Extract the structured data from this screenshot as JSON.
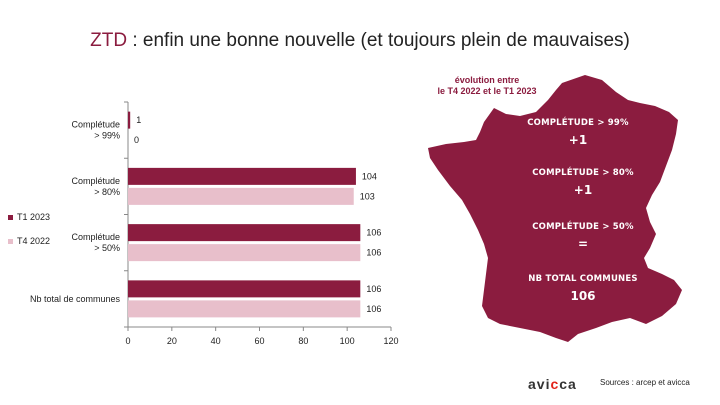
{
  "title": {
    "accent": "ZTD",
    "rest": " : enfin une bonne nouvelle (et toujours plein de mauvaises)"
  },
  "chart_data": {
    "type": "bar",
    "orientation": "horizontal",
    "categories": [
      "Complétude\n> 99%",
      "Complétude\n> 80%",
      "Complétude\n> 50%",
      "Nb total de communes"
    ],
    "series": [
      {
        "name": "T1 2023",
        "values": [
          1,
          104,
          106,
          106
        ],
        "color": "#8b1c3f"
      },
      {
        "name": "T4 2022",
        "values": [
          0,
          103,
          106,
          106
        ],
        "color": "#e8bfcb"
      }
    ],
    "xlim": [
      0,
      120
    ],
    "xticks": [
      0,
      20,
      40,
      60,
      80,
      100,
      120
    ],
    "legend_position": "left"
  },
  "map": {
    "heading": [
      "évolution entre",
      "le T4 2022 et le T1 2023"
    ],
    "color": "#8b1c3f",
    "stats": [
      {
        "label": "COMPLÉTUDE > 99%",
        "value": "+1"
      },
      {
        "label": "COMPLÉTUDE > 80%",
        "value": "+1"
      },
      {
        "label": "COMPLÉTUDE > 50%",
        "value": "="
      },
      {
        "label": "NB TOTAL COMMUNES",
        "value": "106"
      }
    ]
  },
  "logo": {
    "left": "avi",
    "mid": "c",
    "right": "ca"
  },
  "sources": "Sources : arcep et avicca"
}
